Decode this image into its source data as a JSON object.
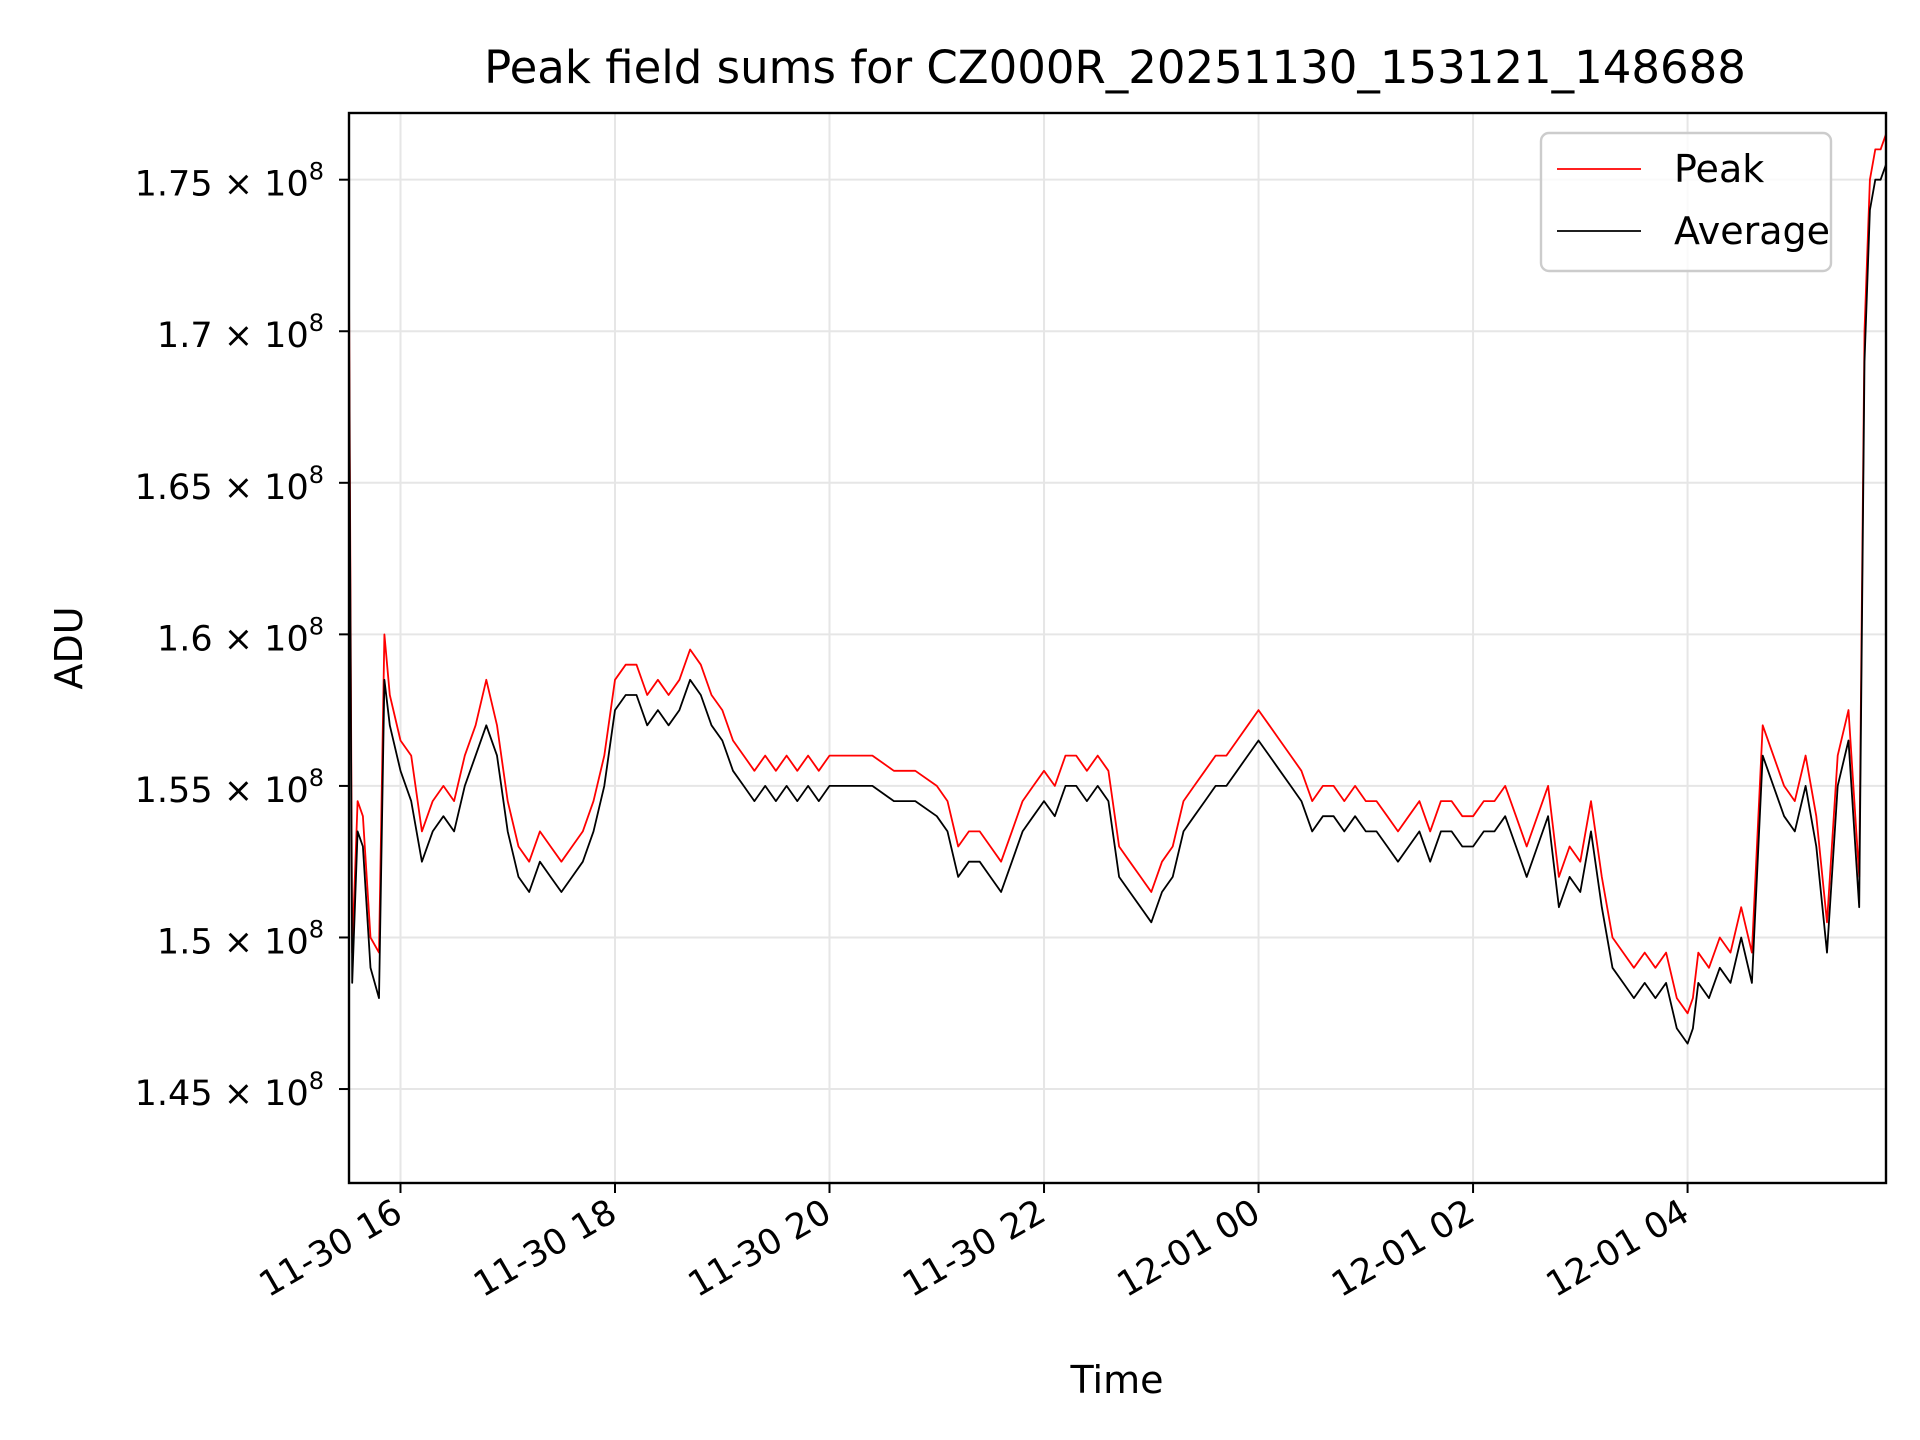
{
  "chart_data": {
    "type": "line",
    "title": "Peak field sums for CZ000R_20251130_153121_148688",
    "xlabel": "Time",
    "ylabel": "ADU",
    "x_unit": "hours since 11-30 00:00",
    "xlim": [
      15.52,
      29.85
    ],
    "ylim": [
      141900000.0,
      177200000.0
    ],
    "grid": true,
    "legend_position": "upper right",
    "x_ticks": [
      {
        "value": 16,
        "label": "11-30 16"
      },
      {
        "value": 18,
        "label": "11-30 18"
      },
      {
        "value": 20,
        "label": "11-30 20"
      },
      {
        "value": 22,
        "label": "11-30 22"
      },
      {
        "value": 24,
        "label": "12-01 00"
      },
      {
        "value": 26,
        "label": "12-01 02"
      },
      {
        "value": 28,
        "label": "12-01 04"
      }
    ],
    "y_ticks": [
      {
        "value": 145000000.0,
        "mantissa": "1.45",
        "exponent": "8"
      },
      {
        "value": 150000000.0,
        "mantissa": "1.5",
        "exponent": "8"
      },
      {
        "value": 155000000.0,
        "mantissa": "1.55",
        "exponent": "8"
      },
      {
        "value": 160000000.0,
        "mantissa": "1.6",
        "exponent": "8"
      },
      {
        "value": 165000000.0,
        "mantissa": "1.65",
        "exponent": "8"
      },
      {
        "value": 170000000.0,
        "mantissa": "1.7",
        "exponent": "8"
      },
      {
        "value": 175000000.0,
        "mantissa": "1.75",
        "exponent": "8"
      }
    ],
    "series": [
      {
        "name": "Peak",
        "color": "#ff0000",
        "x": [
          15.52,
          15.55,
          15.6,
          15.65,
          15.72,
          15.8,
          15.85,
          15.9,
          16.0,
          16.1,
          16.2,
          16.3,
          16.4,
          16.5,
          16.6,
          16.7,
          16.8,
          16.9,
          17.0,
          17.1,
          17.2,
          17.3,
          17.4,
          17.5,
          17.6,
          17.7,
          17.8,
          17.9,
          18.0,
          18.1,
          18.2,
          18.3,
          18.4,
          18.5,
          18.6,
          18.7,
          18.8,
          18.9,
          19.0,
          19.1,
          19.2,
          19.3,
          19.4,
          19.5,
          19.6,
          19.7,
          19.8,
          19.9,
          20.0,
          20.2,
          20.4,
          20.6,
          20.8,
          21.0,
          21.1,
          21.2,
          21.3,
          21.4,
          21.5,
          21.6,
          21.7,
          21.8,
          21.9,
          22.0,
          22.1,
          22.2,
          22.3,
          22.4,
          22.5,
          22.6,
          22.7,
          22.8,
          22.9,
          23.0,
          23.1,
          23.2,
          23.3,
          23.4,
          23.5,
          23.6,
          23.7,
          23.8,
          23.9,
          24.0,
          24.1,
          24.2,
          24.3,
          24.4,
          24.5,
          24.6,
          24.7,
          24.8,
          24.9,
          25.0,
          25.1,
          25.2,
          25.3,
          25.4,
          25.5,
          25.6,
          25.7,
          25.8,
          25.9,
          26.0,
          26.1,
          26.2,
          26.3,
          26.4,
          26.5,
          26.6,
          26.7,
          26.8,
          26.9,
          27.0,
          27.1,
          27.2,
          27.3,
          27.4,
          27.5,
          27.6,
          27.7,
          27.8,
          27.9,
          28.0,
          28.05,
          28.1,
          28.2,
          28.3,
          28.4,
          28.5,
          28.6,
          28.7,
          28.8,
          28.9,
          29.0,
          29.1,
          29.2,
          29.3,
          29.4,
          29.5,
          29.6,
          29.65,
          29.7,
          29.75,
          29.8,
          29.85
        ],
        "values": [
          171500000.0,
          149500000.0,
          154500000.0,
          154000000.0,
          150000000.0,
          149500000.0,
          160000000.0,
          158000000.0,
          156500000.0,
          156000000.0,
          153500000.0,
          154500000.0,
          155000000.0,
          154500000.0,
          156000000.0,
          157000000.0,
          158500000.0,
          157000000.0,
          154500000.0,
          153000000.0,
          152500000.0,
          153500000.0,
          153000000.0,
          152500000.0,
          153000000.0,
          153500000.0,
          154500000.0,
          156000000.0,
          158500000.0,
          159000000.0,
          159000000.0,
          158000000.0,
          158500000.0,
          158000000.0,
          158500000.0,
          159500000.0,
          159000000.0,
          158000000.0,
          157500000.0,
          156500000.0,
          156000000.0,
          155500000.0,
          156000000.0,
          155500000.0,
          156000000.0,
          155500000.0,
          156000000.0,
          155500000.0,
          156000000.0,
          156000000.0,
          156000000.0,
          155500000.0,
          155500000.0,
          155000000.0,
          154500000.0,
          153000000.0,
          153500000.0,
          153500000.0,
          153000000.0,
          152500000.0,
          153500000.0,
          154500000.0,
          155000000.0,
          155500000.0,
          155000000.0,
          156000000.0,
          156000000.0,
          155500000.0,
          156000000.0,
          155500000.0,
          153000000.0,
          152500000.0,
          152000000.0,
          151500000.0,
          152500000.0,
          153000000.0,
          154500000.0,
          155000000.0,
          155500000.0,
          156000000.0,
          156000000.0,
          156500000.0,
          157000000.0,
          157500000.0,
          157000000.0,
          156500000.0,
          156000000.0,
          155500000.0,
          154500000.0,
          155000000.0,
          155000000.0,
          154500000.0,
          155000000.0,
          154500000.0,
          154500000.0,
          154000000.0,
          153500000.0,
          154000000.0,
          154500000.0,
          153500000.0,
          154500000.0,
          154500000.0,
          154000000.0,
          154000000.0,
          154500000.0,
          154500000.0,
          155000000.0,
          154000000.0,
          153000000.0,
          154000000.0,
          155000000.0,
          152000000.0,
          153000000.0,
          152500000.0,
          154500000.0,
          152000000.0,
          150000000.0,
          149500000.0,
          149000000.0,
          149500000.0,
          149000000.0,
          149500000.0,
          148000000.0,
          147500000.0,
          148000000.0,
          149500000.0,
          149000000.0,
          150000000.0,
          149500000.0,
          151000000.0,
          149500000.0,
          157000000.0,
          156000000.0,
          155000000.0,
          154500000.0,
          156000000.0,
          154000000.0,
          150500000.0,
          156000000.0,
          157500000.0,
          152000000.0,
          170000000.0,
          175000000.0,
          176000000.0,
          176000000.0,
          176500000.0
        ]
      },
      {
        "name": "Average",
        "color": "#000000",
        "x": [
          15.52,
          15.55,
          15.6,
          15.65,
          15.72,
          15.8,
          15.85,
          15.9,
          16.0,
          16.1,
          16.2,
          16.3,
          16.4,
          16.5,
          16.6,
          16.7,
          16.8,
          16.9,
          17.0,
          17.1,
          17.2,
          17.3,
          17.4,
          17.5,
          17.6,
          17.7,
          17.8,
          17.9,
          18.0,
          18.1,
          18.2,
          18.3,
          18.4,
          18.5,
          18.6,
          18.7,
          18.8,
          18.9,
          19.0,
          19.1,
          19.2,
          19.3,
          19.4,
          19.5,
          19.6,
          19.7,
          19.8,
          19.9,
          20.0,
          20.2,
          20.4,
          20.6,
          20.8,
          21.0,
          21.1,
          21.2,
          21.3,
          21.4,
          21.5,
          21.6,
          21.7,
          21.8,
          21.9,
          22.0,
          22.1,
          22.2,
          22.3,
          22.4,
          22.5,
          22.6,
          22.7,
          22.8,
          22.9,
          23.0,
          23.1,
          23.2,
          23.3,
          23.4,
          23.5,
          23.6,
          23.7,
          23.8,
          23.9,
          24.0,
          24.1,
          24.2,
          24.3,
          24.4,
          24.5,
          24.6,
          24.7,
          24.8,
          24.9,
          25.0,
          25.1,
          25.2,
          25.3,
          25.4,
          25.5,
          25.6,
          25.7,
          25.8,
          25.9,
          26.0,
          26.1,
          26.2,
          26.3,
          26.4,
          26.5,
          26.6,
          26.7,
          26.8,
          26.9,
          27.0,
          27.1,
          27.2,
          27.3,
          27.4,
          27.5,
          27.6,
          27.7,
          27.8,
          27.9,
          28.0,
          28.05,
          28.1,
          28.2,
          28.3,
          28.4,
          28.5,
          28.6,
          28.7,
          28.8,
          28.9,
          29.0,
          29.1,
          29.2,
          29.3,
          29.4,
          29.5,
          29.6,
          29.65,
          29.7,
          29.75,
          29.8,
          29.85
        ],
        "values": [
          170000000.0,
          148500000.0,
          153500000.0,
          153000000.0,
          149000000.0,
          148000000.0,
          158500000.0,
          157000000.0,
          155500000.0,
          154500000.0,
          152500000.0,
          153500000.0,
          154000000.0,
          153500000.0,
          155000000.0,
          156000000.0,
          157000000.0,
          156000000.0,
          153500000.0,
          152000000.0,
          151500000.0,
          152500000.0,
          152000000.0,
          151500000.0,
          152000000.0,
          152500000.0,
          153500000.0,
          155000000.0,
          157500000.0,
          158000000.0,
          158000000.0,
          157000000.0,
          157500000.0,
          157000000.0,
          157500000.0,
          158500000.0,
          158000000.0,
          157000000.0,
          156500000.0,
          155500000.0,
          155000000.0,
          154500000.0,
          155000000.0,
          154500000.0,
          155000000.0,
          154500000.0,
          155000000.0,
          154500000.0,
          155000000.0,
          155000000.0,
          155000000.0,
          154500000.0,
          154500000.0,
          154000000.0,
          153500000.0,
          152000000.0,
          152500000.0,
          152500000.0,
          152000000.0,
          151500000.0,
          152500000.0,
          153500000.0,
          154000000.0,
          154500000.0,
          154000000.0,
          155000000.0,
          155000000.0,
          154500000.0,
          155000000.0,
          154500000.0,
          152000000.0,
          151500000.0,
          151000000.0,
          150500000.0,
          151500000.0,
          152000000.0,
          153500000.0,
          154000000.0,
          154500000.0,
          155000000.0,
          155000000.0,
          155500000.0,
          156000000.0,
          156500000.0,
          156000000.0,
          155500000.0,
          155000000.0,
          154500000.0,
          153500000.0,
          154000000.0,
          154000000.0,
          153500000.0,
          154000000.0,
          153500000.0,
          153500000.0,
          153000000.0,
          152500000.0,
          153000000.0,
          153500000.0,
          152500000.0,
          153500000.0,
          153500000.0,
          153000000.0,
          153000000.0,
          153500000.0,
          153500000.0,
          154000000.0,
          153000000.0,
          152000000.0,
          153000000.0,
          154000000.0,
          151000000.0,
          152000000.0,
          151500000.0,
          153500000.0,
          151000000.0,
          149000000.0,
          148500000.0,
          148000000.0,
          148500000.0,
          148000000.0,
          148500000.0,
          147000000.0,
          146500000.0,
          147000000.0,
          148500000.0,
          148000000.0,
          149000000.0,
          148500000.0,
          150000000.0,
          148500000.0,
          156000000.0,
          155000000.0,
          154000000.0,
          153500000.0,
          155000000.0,
          153000000.0,
          149500000.0,
          155000000.0,
          156500000.0,
          151000000.0,
          169000000.0,
          174000000.0,
          175000000.0,
          175000000.0,
          175500000.0
        ]
      }
    ]
  }
}
